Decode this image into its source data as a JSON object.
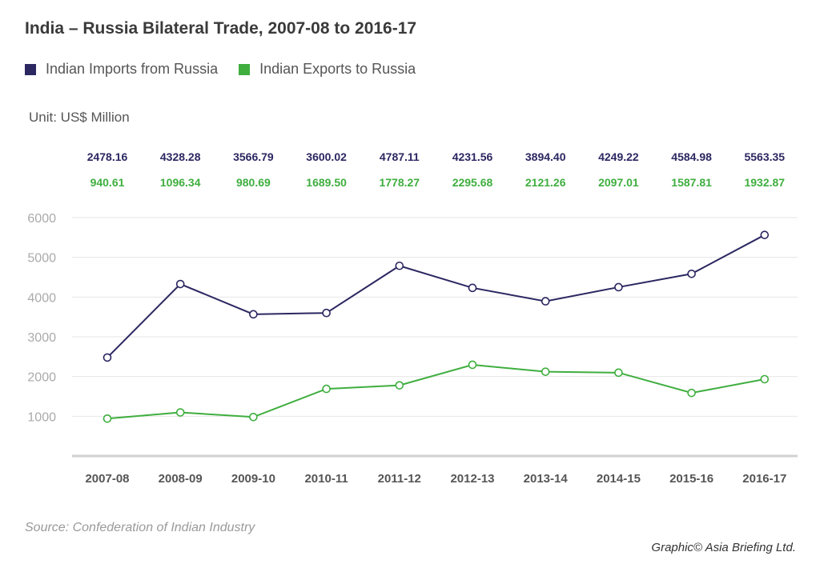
{
  "title": "India – Russia Bilateral Trade, 2007-08 to 2016-17",
  "unit": "Unit: US$ Million",
  "source": "Source: Confederation of Indian Industry",
  "credit": "Graphic© Asia Briefing Ltd.",
  "colors": {
    "imports": "#2b2761",
    "exports": "#3fae3f",
    "grid": "#e6e6e6",
    "axis": "#d0d0d0"
  },
  "chart_data": {
    "type": "line",
    "categories": [
      "2007-08",
      "2008-09",
      "2009-10",
      "2010-11",
      "2011-12",
      "2012-13",
      "2013-14",
      "2014-15",
      "2015-16",
      "2016-17"
    ],
    "series": [
      {
        "name": "Indian Imports from Russia",
        "values": [
          2478.16,
          4328.28,
          3566.79,
          3600.02,
          4787.11,
          4231.56,
          3894.4,
          4249.22,
          4584.98,
          5563.35
        ],
        "labels": [
          "2478.16",
          "4328.28",
          "3566.79",
          "3600.02",
          "4787.11",
          "4231.56",
          "3894.40",
          "4249.22",
          "4584.98",
          "5563.35"
        ]
      },
      {
        "name": "Indian Exports to Russia",
        "values": [
          940.61,
          1096.34,
          980.69,
          1689.5,
          1778.27,
          2295.68,
          2121.26,
          2097.01,
          1587.81,
          1932.87
        ],
        "labels": [
          "940.61",
          "1096.34",
          "980.69",
          "1689.50",
          "1778.27",
          "2295.68",
          "2121.26",
          "2097.01",
          "1587.81",
          "1932.87"
        ]
      }
    ],
    "yticks": [
      "1000",
      "2000",
      "3000",
      "4000",
      "5000",
      "6000"
    ],
    "ylim": [
      0,
      6000
    ],
    "grid": true,
    "legend": "top-left"
  }
}
